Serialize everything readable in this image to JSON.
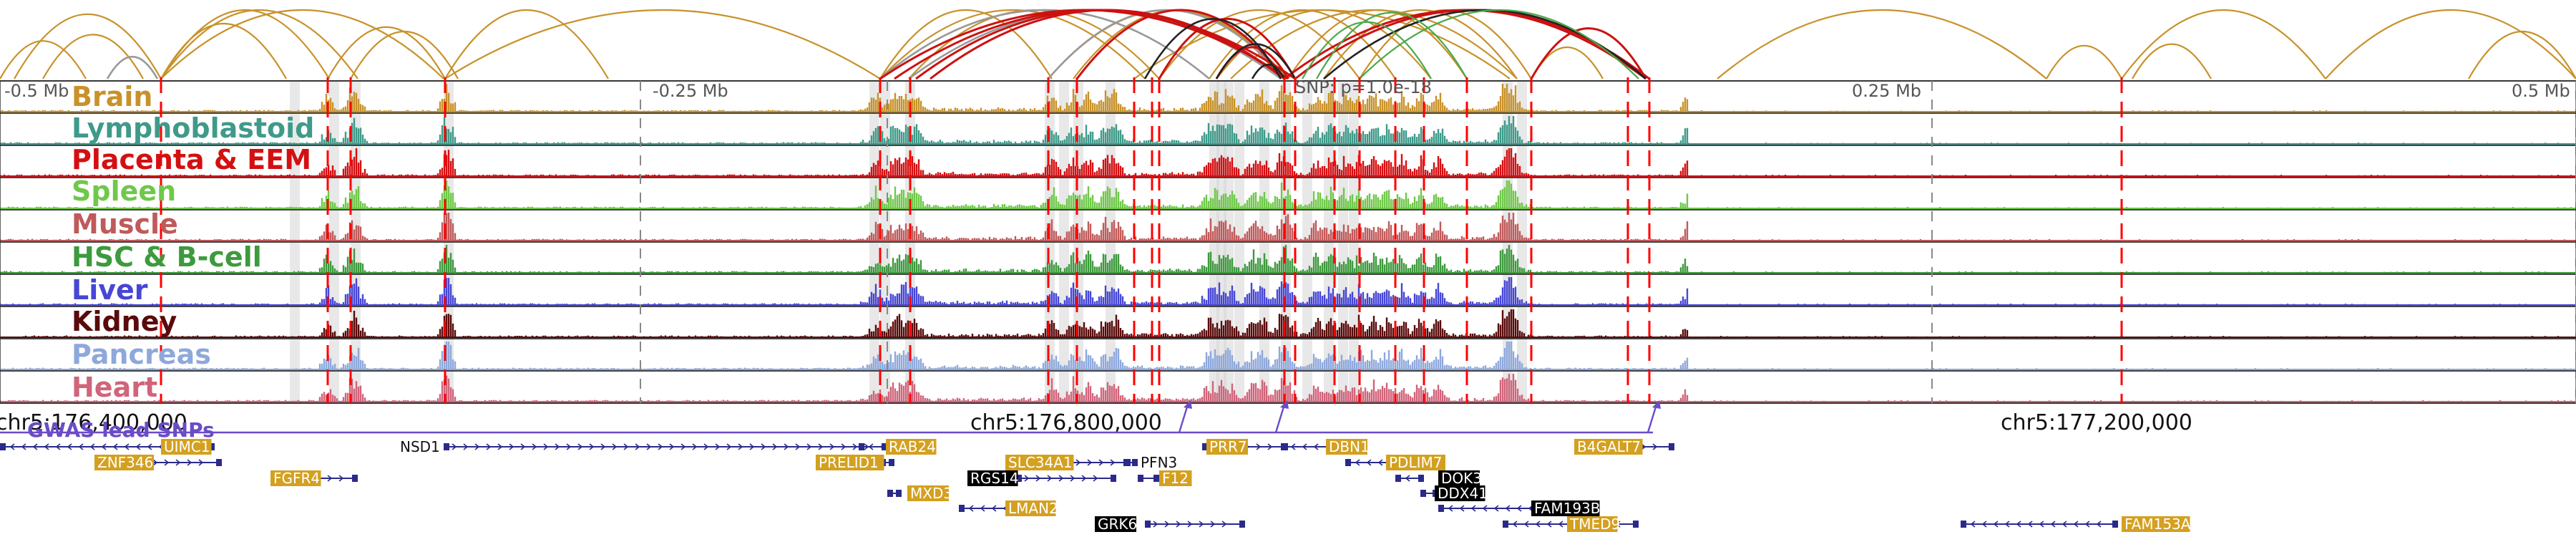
{
  "axis": {
    "top_ticks": [
      "-0.5 Mb",
      "-0.25 Mb",
      "0.25 Mb",
      "0.5 Mb"
    ],
    "snp_label": "SNP: p=1.0e-18",
    "coord_ticks": [
      "chr5:176,400,000",
      "chr5:176,800,000",
      "chr5:177,200,000"
    ]
  },
  "tracks": [
    {
      "label": "Brain",
      "color": "#c8922a"
    },
    {
      "label": "Lymphoblastoid",
      "color": "#3f9a8a"
    },
    {
      "label": "Placenta & EEM",
      "color": "#d40f12"
    },
    {
      "label": "Spleen",
      "color": "#6fc84a"
    },
    {
      "label": "Muscle",
      "color": "#c05a5a"
    },
    {
      "label": "HSC & B-cell",
      "color": "#3d9a3d"
    },
    {
      "label": "Liver",
      "color": "#4646d6"
    },
    {
      "label": "Kidney",
      "color": "#5a0a0a"
    },
    {
      "label": "Pancreas",
      "color": "#8ea8dc"
    },
    {
      "label": "Heart",
      "color": "#d0647a"
    }
  ],
  "gwas_label": "GWAS lead SNPs",
  "genes": [
    {
      "name": "UIMC1",
      "style": "gold"
    },
    {
      "name": "NSD1",
      "style": "plain"
    },
    {
      "name": "RAB24",
      "style": "gold"
    },
    {
      "name": "PRR7",
      "style": "gold"
    },
    {
      "name": "DBN1",
      "style": "gold"
    },
    {
      "name": "B4GALT7",
      "style": "gold"
    },
    {
      "name": "ZNF346",
      "style": "gold"
    },
    {
      "name": "PRELID1",
      "style": "gold"
    },
    {
      "name": "SLC34A1",
      "style": "gold"
    },
    {
      "name": "PFN3",
      "style": "plain"
    },
    {
      "name": "PDLIM7",
      "style": "gold"
    },
    {
      "name": "FGFR4",
      "style": "gold"
    },
    {
      "name": "RGS14",
      "style": "black"
    },
    {
      "name": "F12",
      "style": "gold"
    },
    {
      "name": "DOK3",
      "style": "black"
    },
    {
      "name": "MXD3",
      "style": "gold"
    },
    {
      "name": "DDX41",
      "style": "black"
    },
    {
      "name": "LMAN2",
      "style": "gold"
    },
    {
      "name": "FAM193B",
      "style": "black"
    },
    {
      "name": "GRK6",
      "style": "black"
    },
    {
      "name": "TMED9",
      "style": "gold"
    },
    {
      "name": "FAM153A",
      "style": "gold"
    }
  ],
  "colors": {
    "arc_gold": "#c8922a",
    "arc_red": "#cc1111",
    "arc_gray": "#999999",
    "arc_black": "#222222",
    "dashed_red": "#ff0000",
    "gwas_purple": "#6a4cc8",
    "gene_blue": "#2a2a8a",
    "gold_box": "#d4a020"
  }
}
